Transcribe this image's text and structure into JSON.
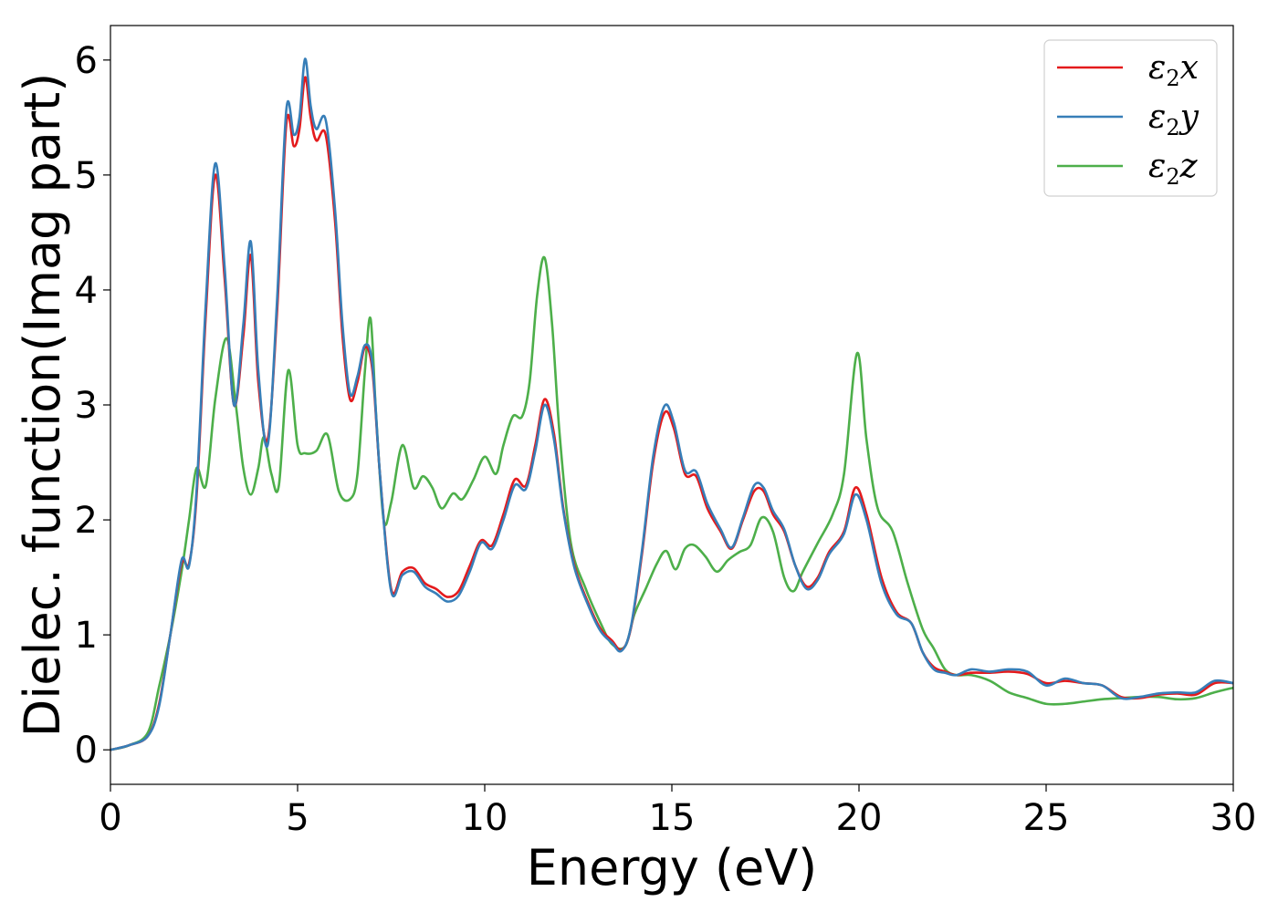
{
  "chart_data": {
    "type": "line",
    "xlabel": "Energy (eV)",
    "ylabel": "Dielec. function(Imag part)",
    "xlim": [
      0,
      30
    ],
    "ylim": [
      -0.3,
      6.3
    ],
    "xticks": [
      0,
      5,
      10,
      15,
      20,
      25,
      30
    ],
    "yticks": [
      0,
      1,
      2,
      3,
      4,
      5,
      6
    ],
    "legend_position": "top-right",
    "grid": false,
    "series": [
      {
        "name": "ε2x",
        "legend_base": "ε",
        "legend_sub": "2",
        "legend_var": "x",
        "color": "#e41a1c",
        "x": [
          0,
          0.5,
          1.0,
          1.3,
          1.6,
          1.9,
          2.1,
          2.3,
          2.55,
          2.8,
          3.05,
          3.3,
          3.55,
          3.75,
          3.95,
          4.2,
          4.45,
          4.7,
          4.9,
          5.05,
          5.2,
          5.35,
          5.5,
          5.75,
          6.0,
          6.2,
          6.4,
          6.6,
          6.8,
          7.0,
          7.2,
          7.5,
          7.8,
          8.1,
          8.4,
          8.7,
          9.0,
          9.3,
          9.6,
          9.9,
          10.2,
          10.5,
          10.8,
          11.1,
          11.35,
          11.6,
          11.85,
          12.1,
          12.4,
          12.8,
          13.1,
          13.4,
          13.65,
          13.9,
          14.2,
          14.5,
          14.8,
          15.05,
          15.35,
          15.65,
          15.95,
          16.3,
          16.6,
          16.9,
          17.2,
          17.45,
          17.7,
          18.0,
          18.3,
          18.6,
          18.9,
          19.2,
          19.6,
          19.9,
          20.2,
          20.6,
          21.0,
          21.4,
          21.7,
          22.0,
          22.3,
          22.6,
          23.0,
          23.5,
          24.0,
          24.5,
          25.0,
          25.5,
          26.0,
          26.5,
          27.0,
          27.5,
          28.0,
          28.5,
          29.0,
          29.5,
          30.0
        ],
        "y": [
          0,
          0.04,
          0.12,
          0.4,
          1.0,
          1.62,
          1.62,
          2.2,
          3.8,
          5.0,
          4.1,
          3.0,
          3.6,
          4.3,
          3.2,
          2.7,
          3.8,
          5.45,
          5.25,
          5.4,
          5.85,
          5.5,
          5.3,
          5.35,
          4.6,
          3.6,
          3.05,
          3.2,
          3.5,
          3.3,
          2.4,
          1.4,
          1.55,
          1.58,
          1.45,
          1.4,
          1.33,
          1.38,
          1.6,
          1.82,
          1.78,
          2.05,
          2.35,
          2.3,
          2.65,
          3.05,
          2.75,
          2.1,
          1.6,
          1.25,
          1.05,
          0.95,
          0.87,
          1.05,
          1.7,
          2.5,
          2.93,
          2.8,
          2.4,
          2.38,
          2.1,
          1.9,
          1.75,
          2.0,
          2.25,
          2.25,
          2.05,
          1.9,
          1.6,
          1.42,
          1.5,
          1.72,
          1.9,
          2.28,
          2.05,
          1.5,
          1.2,
          1.1,
          0.85,
          0.72,
          0.68,
          0.65,
          0.67,
          0.67,
          0.68,
          0.66,
          0.58,
          0.6,
          0.58,
          0.56,
          0.46,
          0.45,
          0.48,
          0.49,
          0.48,
          0.58,
          0.58
        ]
      },
      {
        "name": "ε2y",
        "legend_base": "ε",
        "legend_sub": "2",
        "legend_var": "y",
        "color": "#377eb8",
        "x": [
          0,
          0.5,
          1.0,
          1.3,
          1.6,
          1.9,
          2.1,
          2.3,
          2.55,
          2.8,
          3.05,
          3.3,
          3.55,
          3.75,
          3.95,
          4.2,
          4.45,
          4.7,
          4.9,
          5.05,
          5.2,
          5.35,
          5.5,
          5.75,
          6.0,
          6.2,
          6.4,
          6.6,
          6.8,
          7.0,
          7.2,
          7.5,
          7.8,
          8.1,
          8.4,
          8.7,
          9.0,
          9.3,
          9.6,
          9.9,
          10.2,
          10.5,
          10.8,
          11.1,
          11.35,
          11.6,
          11.85,
          12.1,
          12.4,
          12.8,
          13.1,
          13.4,
          13.65,
          13.9,
          14.2,
          14.5,
          14.8,
          15.05,
          15.35,
          15.65,
          15.95,
          16.3,
          16.6,
          16.9,
          17.2,
          17.45,
          17.7,
          18.0,
          18.3,
          18.6,
          18.9,
          19.2,
          19.6,
          19.9,
          20.2,
          20.6,
          21.0,
          21.4,
          21.7,
          22.0,
          22.3,
          22.6,
          23.0,
          23.5,
          24.0,
          24.5,
          25.0,
          25.5,
          26.0,
          26.5,
          27.0,
          27.5,
          28.0,
          28.5,
          29.0,
          29.5,
          30.0
        ],
        "y": [
          0,
          0.04,
          0.12,
          0.38,
          1.0,
          1.65,
          1.6,
          2.25,
          3.9,
          5.1,
          4.2,
          3.0,
          3.7,
          4.42,
          3.3,
          2.65,
          3.9,
          5.57,
          5.35,
          5.5,
          6.01,
          5.6,
          5.4,
          5.48,
          4.7,
          3.7,
          3.1,
          3.25,
          3.52,
          3.35,
          2.4,
          1.38,
          1.52,
          1.55,
          1.42,
          1.36,
          1.29,
          1.34,
          1.55,
          1.8,
          1.75,
          2.0,
          2.3,
          2.27,
          2.6,
          3.0,
          2.7,
          2.08,
          1.58,
          1.23,
          1.03,
          0.93,
          0.86,
          1.06,
          1.73,
          2.55,
          2.99,
          2.85,
          2.43,
          2.42,
          2.14,
          1.92,
          1.76,
          2.02,
          2.3,
          2.28,
          2.08,
          1.92,
          1.6,
          1.4,
          1.48,
          1.7,
          1.88,
          2.22,
          2.0,
          1.45,
          1.18,
          1.1,
          0.85,
          0.7,
          0.67,
          0.65,
          0.7,
          0.68,
          0.7,
          0.68,
          0.56,
          0.62,
          0.58,
          0.56,
          0.45,
          0.46,
          0.49,
          0.5,
          0.5,
          0.6,
          0.58
        ]
      },
      {
        "name": "ε2z",
        "legend_base": "ε",
        "legend_sub": "2",
        "legend_var": "z",
        "color": "#4daf4a",
        "x": [
          0,
          0.5,
          1.0,
          1.3,
          1.6,
          1.9,
          2.1,
          2.3,
          2.55,
          2.8,
          3.1,
          3.35,
          3.55,
          3.75,
          3.95,
          4.1,
          4.3,
          4.5,
          4.75,
          5.0,
          5.2,
          5.5,
          5.8,
          6.1,
          6.4,
          6.6,
          6.8,
          6.95,
          7.1,
          7.3,
          7.5,
          7.8,
          8.1,
          8.35,
          8.6,
          8.85,
          9.15,
          9.4,
          9.7,
          10.0,
          10.3,
          10.5,
          10.75,
          11.0,
          11.2,
          11.4,
          11.6,
          11.8,
          12.0,
          12.3,
          12.7,
          13.1,
          13.4,
          13.75,
          14.0,
          14.3,
          14.6,
          14.85,
          15.1,
          15.35,
          15.6,
          15.9,
          16.2,
          16.5,
          16.8,
          17.1,
          17.4,
          17.7,
          18.0,
          18.25,
          18.5,
          18.9,
          19.3,
          19.6,
          19.95,
          20.2,
          20.5,
          20.9,
          21.3,
          21.7,
          22.0,
          22.3,
          22.6,
          23.0,
          23.5,
          24.0,
          24.5,
          25.0,
          25.5,
          26.0,
          26.5,
          27.0,
          27.5,
          28.0,
          28.5,
          29.0,
          29.5,
          30.0
        ],
        "y": [
          0,
          0.04,
          0.15,
          0.55,
          1.0,
          1.55,
          2.0,
          2.45,
          2.3,
          3.05,
          3.58,
          3.0,
          2.45,
          2.22,
          2.45,
          2.72,
          2.4,
          2.3,
          3.3,
          2.65,
          2.58,
          2.6,
          2.74,
          2.25,
          2.18,
          2.4,
          3.3,
          3.75,
          2.9,
          2.0,
          2.15,
          2.65,
          2.28,
          2.38,
          2.28,
          2.1,
          2.23,
          2.18,
          2.35,
          2.55,
          2.4,
          2.65,
          2.9,
          2.9,
          3.2,
          3.95,
          4.28,
          3.7,
          2.75,
          1.8,
          1.4,
          1.1,
          0.92,
          0.9,
          1.18,
          1.4,
          1.62,
          1.73,
          1.57,
          1.75,
          1.78,
          1.68,
          1.55,
          1.65,
          1.72,
          1.78,
          2.02,
          1.9,
          1.5,
          1.38,
          1.55,
          1.8,
          2.05,
          2.4,
          3.45,
          2.7,
          2.1,
          1.9,
          1.45,
          1.05,
          0.88,
          0.7,
          0.65,
          0.65,
          0.6,
          0.5,
          0.45,
          0.4,
          0.4,
          0.42,
          0.44,
          0.45,
          0.46,
          0.46,
          0.44,
          0.45,
          0.5,
          0.54
        ]
      }
    ]
  }
}
